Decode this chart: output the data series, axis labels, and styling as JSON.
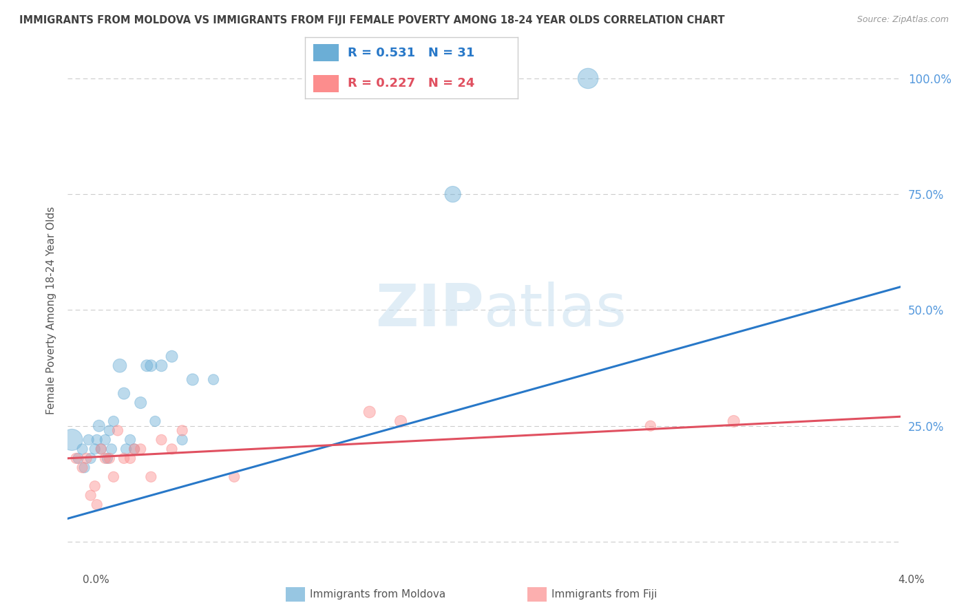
{
  "title": "IMMIGRANTS FROM MOLDOVA VS IMMIGRANTS FROM FIJI FEMALE POVERTY AMONG 18-24 YEAR OLDS CORRELATION CHART",
  "source": "Source: ZipAtlas.com",
  "ylabel": "Female Poverty Among 18-24 Year Olds",
  "xlim": [
    0.0,
    4.0
  ],
  "ylim": [
    -5.0,
    105.0
  ],
  "moldova_color": "#6baed6",
  "fiji_color": "#fc8d8d",
  "moldova_r": 0.531,
  "moldova_n": 31,
  "fiji_r": 0.227,
  "fiji_n": 24,
  "watermark_zip": "ZIP",
  "watermark_atlas": "atlas",
  "moldova_scatter_x": [
    0.02,
    0.05,
    0.07,
    0.08,
    0.1,
    0.11,
    0.13,
    0.14,
    0.15,
    0.16,
    0.18,
    0.19,
    0.2,
    0.21,
    0.22,
    0.25,
    0.27,
    0.28,
    0.3,
    0.32,
    0.35,
    0.38,
    0.4,
    0.42,
    0.45,
    0.5,
    0.55,
    0.6,
    0.7,
    1.85,
    2.5
  ],
  "moldova_scatter_y": [
    22,
    18,
    20,
    16,
    22,
    18,
    20,
    22,
    25,
    20,
    22,
    18,
    24,
    20,
    26,
    38,
    32,
    20,
    22,
    20,
    30,
    38,
    38,
    26,
    38,
    40,
    22,
    35,
    35,
    75,
    100
  ],
  "moldova_scatter_size": [
    500,
    120,
    120,
    120,
    120,
    120,
    120,
    120,
    150,
    120,
    120,
    120,
    120,
    120,
    120,
    200,
    150,
    120,
    120,
    120,
    150,
    150,
    150,
    120,
    150,
    150,
    120,
    150,
    120,
    280,
    450
  ],
  "fiji_scatter_x": [
    0.04,
    0.07,
    0.09,
    0.11,
    0.13,
    0.14,
    0.16,
    0.18,
    0.2,
    0.22,
    0.24,
    0.27,
    0.3,
    0.32,
    0.35,
    0.4,
    0.45,
    0.5,
    0.55,
    0.8,
    1.45,
    1.6,
    2.8,
    3.2
  ],
  "fiji_scatter_y": [
    18,
    16,
    18,
    10,
    12,
    8,
    20,
    18,
    18,
    14,
    24,
    18,
    18,
    20,
    20,
    14,
    22,
    20,
    24,
    14,
    28,
    26,
    25,
    26
  ],
  "fiji_scatter_size": [
    120,
    120,
    120,
    120,
    120,
    120,
    120,
    120,
    120,
    120,
    120,
    120,
    120,
    120,
    120,
    120,
    120,
    120,
    120,
    120,
    150,
    150,
    120,
    150
  ],
  "moldova_line_x": [
    0.0,
    4.0
  ],
  "moldova_line_y": [
    5.0,
    55.0
  ],
  "fiji_line_x": [
    0.0,
    4.0
  ],
  "fiji_line_y": [
    18.0,
    27.0
  ],
  "background_color": "#ffffff",
  "grid_color": "#cccccc",
  "title_color": "#404040",
  "source_color": "#999999",
  "ytick_color": "#5599dd",
  "ytick_vals": [
    25.0,
    50.0,
    75.0,
    100.0
  ],
  "ytick_labels": [
    "25.0%",
    "50.0%",
    "75.0%",
    "100.0%"
  ]
}
